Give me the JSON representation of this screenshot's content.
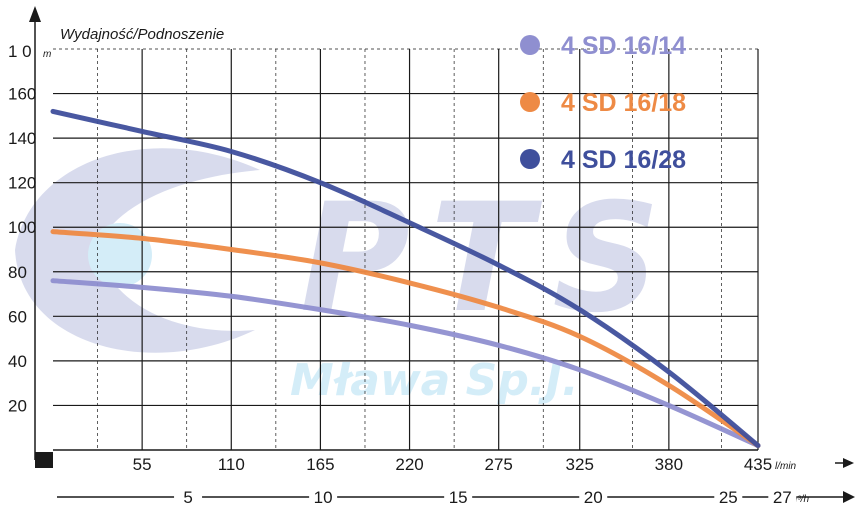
{
  "chart_data": {
    "type": "line",
    "title": "Wydajność/Podnoszenie",
    "ylabel_unit": "m",
    "y_top_label": "1 0",
    "xlabel_unit": "l/min",
    "x2label_unit": "m³/h",
    "xlim": [
      0,
      435
    ],
    "ylim": [
      0,
      180
    ],
    "y_ticks": [
      "20",
      "40",
      "60",
      "80",
      "100",
      "120",
      "140",
      "160"
    ],
    "x_ticks": [
      "55",
      "110",
      "165",
      "220",
      "275",
      "325",
      "380",
      "435"
    ],
    "x2_ticks": [
      "5",
      "10",
      "15",
      "20",
      "25",
      "27"
    ],
    "grid": true,
    "legend_position": "top-right",
    "series": [
      {
        "name": "4 SD 16/14",
        "color": "#8f8fd0",
        "x": [
          0,
          55,
          110,
          165,
          220,
          275,
          325,
          380,
          435
        ],
        "y": [
          76,
          73,
          69,
          63,
          56,
          47,
          36,
          20,
          2
        ]
      },
      {
        "name": "4 SD 16/18",
        "color": "#ee8a45",
        "x": [
          0,
          55,
          110,
          165,
          220,
          275,
          325,
          380,
          435
        ],
        "y": [
          98,
          95,
          90,
          84,
          75,
          64,
          51,
          29,
          2
        ]
      },
      {
        "name": "4 SD 16/28",
        "color": "#3f4f9c",
        "x": [
          0,
          55,
          110,
          165,
          220,
          275,
          325,
          380,
          435
        ],
        "y": [
          152,
          143,
          134,
          120,
          102,
          83,
          63,
          35,
          2
        ]
      }
    ]
  },
  "watermark": {
    "main": "PTS",
    "sub": "Mława Sp.J."
  }
}
